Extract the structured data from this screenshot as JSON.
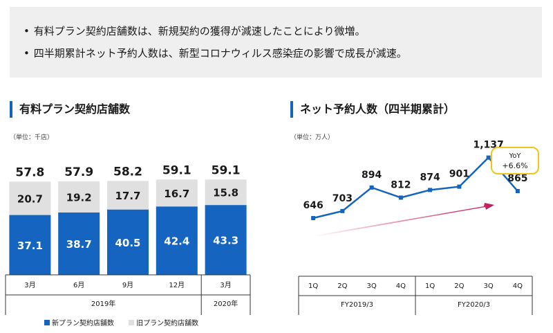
{
  "summary": {
    "bullets": [
      "有料プラン契約店舗数は、新規契約の獲得が減速したことにより微増。",
      "四半期累計ネット予約人数は、新型コロナウィルス感染症の影響で成長が減速。"
    ]
  },
  "left_panel": {
    "title": "有料プラン契約店舗数",
    "unit": "（単位：千店）"
  },
  "right_panel": {
    "title": "ネット予約人数（四半期累計）",
    "unit": "（単位：万人）",
    "yoy_label": "YoY",
    "yoy_value": "+6.6%"
  },
  "colors": {
    "new": "#1565c0",
    "old": "#e0e0e0",
    "line": "#1565c0",
    "arrow": "#c2185b",
    "accent_bar": "#1565c0",
    "yoy_border": "#f0c419"
  },
  "chart_data": [
    {
      "type": "bar",
      "stacked": true,
      "categories": [
        "3月",
        "6月",
        "9月",
        "12月",
        "3月"
      ],
      "groups": [
        {
          "label": "2019年",
          "categories": [
            "3月",
            "6月",
            "9月",
            "12月"
          ]
        },
        {
          "label": "2020年",
          "categories": [
            "3月"
          ]
        }
      ],
      "series": [
        {
          "name": "新プラン契約店舗数",
          "values": [
            37.1,
            38.7,
            40.5,
            42.4,
            43.3
          ],
          "color": "#1565c0"
        },
        {
          "name": "旧プラン契約店舗数",
          "values": [
            20.7,
            19.2,
            17.7,
            16.7,
            15.8
          ],
          "color": "#e0e0e0"
        }
      ],
      "totals": [
        "57.8",
        "57.9",
        "58.2",
        "59.1",
        "59.1"
      ],
      "value_labels": {
        "new": [
          "37.1",
          "38.7",
          "40.5",
          "42.4",
          "43.3"
        ],
        "old": [
          "20.7",
          "19.2",
          "17.7",
          "16.7",
          "15.8"
        ]
      },
      "ylim": [
        0,
        60
      ],
      "legend_position": "bottom"
    },
    {
      "type": "line",
      "categories": [
        "1Q",
        "2Q",
        "3Q",
        "4Q",
        "1Q",
        "2Q",
        "3Q",
        "4Q"
      ],
      "groups": [
        {
          "label": "FY2019/3",
          "categories": [
            "1Q",
            "2Q",
            "3Q",
            "4Q"
          ]
        },
        {
          "label": "FY2020/3",
          "categories": [
            "1Q",
            "2Q",
            "3Q",
            "4Q"
          ]
        }
      ],
      "values": [
        646,
        703,
        894,
        812,
        874,
        901,
        1137,
        865
      ],
      "value_labels": [
        "646",
        "703",
        "894",
        "812",
        "874",
        "901",
        "1,137",
        "865"
      ],
      "ylim": [
        500,
        1200
      ]
    }
  ]
}
